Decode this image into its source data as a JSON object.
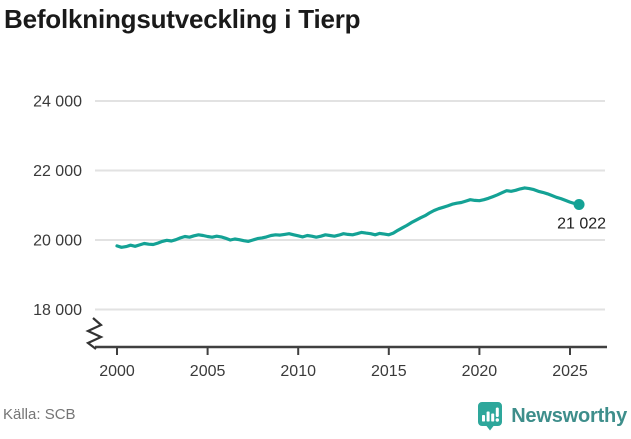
{
  "header": {
    "title": "Befolkningsutveckling i Tierp"
  },
  "footer": {
    "source": "Källa: SCB",
    "brand": "Newsworthy"
  },
  "colors": {
    "title": "#1a1a1a",
    "line": "#14a295",
    "grid": "#e2e2e2",
    "axis": "#404040",
    "tick_label": "#3a3a3a",
    "end_label": "#222222",
    "source_text": "#757575",
    "brand_text": "#3e8e8b",
    "brand_icon": "#2ea79b"
  },
  "chart_data": {
    "type": "line",
    "title": "Befolkningsutveckling i Tierp",
    "xlabel": "",
    "ylabel": "",
    "series_name": "Befolkning i Tierp",
    "source": "SCB",
    "legend": "none",
    "grid": "horizontal",
    "axis_break": true,
    "xlim": [
      2000,
      2026
    ],
    "ylim": [
      18000,
      24000
    ],
    "xticks": [
      2000,
      2005,
      2010,
      2015,
      2020,
      2025
    ],
    "yticks": [
      18000,
      20000,
      22000,
      24000
    ],
    "ytick_labels": [
      "18 000",
      "20 000",
      "22 000",
      "24 000"
    ],
    "end_label": "21 022",
    "end_value": 21022,
    "x": [
      2000.0,
      2000.25,
      2000.5,
      2000.75,
      2001.0,
      2001.25,
      2001.5,
      2001.75,
      2002.0,
      2002.25,
      2002.5,
      2002.75,
      2003.0,
      2003.25,
      2003.5,
      2003.75,
      2004.0,
      2004.25,
      2004.5,
      2004.75,
      2005.0,
      2005.25,
      2005.5,
      2005.75,
      2006.0,
      2006.25,
      2006.5,
      2006.75,
      2007.0,
      2007.25,
      2007.5,
      2007.75,
      2008.0,
      2008.25,
      2008.5,
      2008.75,
      2009.0,
      2009.25,
      2009.5,
      2009.75,
      2010.0,
      2010.25,
      2010.5,
      2010.75,
      2011.0,
      2011.25,
      2011.5,
      2011.75,
      2012.0,
      2012.25,
      2012.5,
      2012.75,
      2013.0,
      2013.25,
      2013.5,
      2013.75,
      2014.0,
      2014.25,
      2014.5,
      2014.75,
      2015.0,
      2015.25,
      2015.5,
      2015.75,
      2016.0,
      2016.25,
      2016.5,
      2016.75,
      2017.0,
      2017.25,
      2017.5,
      2017.75,
      2018.0,
      2018.25,
      2018.5,
      2018.75,
      2019.0,
      2019.25,
      2019.5,
      2019.75,
      2020.0,
      2020.25,
      2020.5,
      2020.75,
      2021.0,
      2021.25,
      2021.5,
      2021.75,
      2022.0,
      2022.25,
      2022.5,
      2022.75,
      2023.0,
      2023.25,
      2023.5,
      2023.75,
      2024.0,
      2024.25,
      2024.5,
      2024.75,
      2025.0,
      2025.25,
      2025.5
    ],
    "values": [
      19830,
      19790,
      19810,
      19850,
      19820,
      19860,
      19900,
      19880,
      19870,
      19910,
      19960,
      19990,
      19970,
      20010,
      20060,
      20100,
      20080,
      20120,
      20150,
      20130,
      20100,
      20080,
      20110,
      20090,
      20050,
      20000,
      20030,
      20010,
      19980,
      19960,
      20000,
      20040,
      20060,
      20090,
      20130,
      20150,
      20140,
      20160,
      20180,
      20150,
      20120,
      20090,
      20130,
      20110,
      20080,
      20110,
      20150,
      20130,
      20110,
      20140,
      20180,
      20160,
      20150,
      20180,
      20220,
      20200,
      20180,
      20150,
      20190,
      20170,
      20150,
      20200,
      20280,
      20350,
      20420,
      20500,
      20570,
      20640,
      20700,
      20780,
      20850,
      20900,
      20940,
      20980,
      21030,
      21060,
      21080,
      21120,
      21160,
      21140,
      21130,
      21160,
      21200,
      21250,
      21300,
      21360,
      21420,
      21400,
      21430,
      21470,
      21500,
      21480,
      21450,
      21400,
      21370,
      21330,
      21280,
      21230,
      21190,
      21140,
      21090,
      21050,
      21022
    ]
  }
}
